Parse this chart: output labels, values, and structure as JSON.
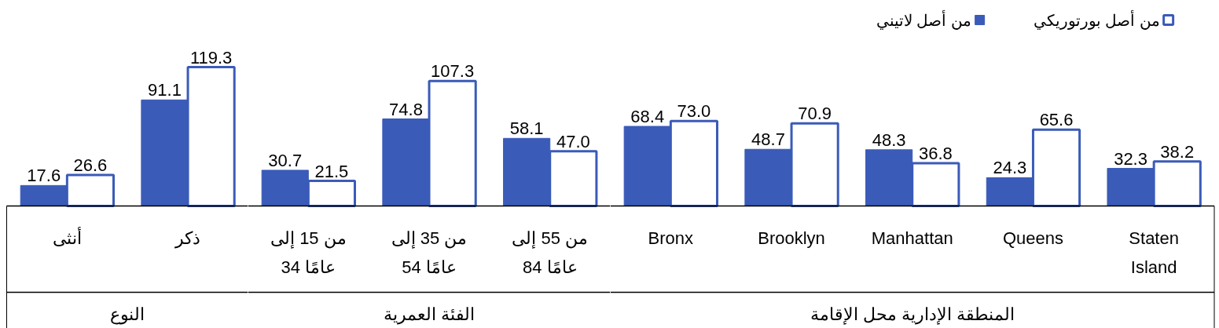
{
  "chart_data": [
    {
      "type": "bar",
      "xlabel": "النوع",
      "categories": [
        "أنثى",
        "ذكر"
      ],
      "series": [
        {
          "color": "#3a5bb8",
          "values": [
            17.6,
            91.1
          ],
          "value_labels": [
            "17.6",
            "91.1"
          ]
        },
        {
          "color": "#3a5bb8",
          "values": [
            26.6,
            119.3
          ],
          "value_labels": [
            "26.6",
            "119.3"
          ]
        }
      ]
    },
    {
      "type": "bar",
      "xlabel": "الفئة العمرية",
      "categories": [
        "من 15 إلى 34 عامًا",
        "من 35 إلى 54 عامًا",
        "من 55 إلى 84 عامًا"
      ],
      "series": [
        {
          "color": "#3a5bb8",
          "values": [
            30.7,
            74.8,
            58.1
          ],
          "value_labels": [
            "30.7",
            "74.8",
            "58.1"
          ]
        },
        {
          "color": "#3a5bb8",
          "values": [
            21.5,
            107.3,
            47.0
          ],
          "value_labels": [
            "21.5",
            "107.3",
            "47.0"
          ]
        }
      ]
    },
    {
      "type": "bar",
      "xlabel": "المنطقة الإدارية محل الإقامة",
      "categories": [
        "Bronx",
        "Brooklyn",
        "Manhattan",
        "Queens",
        "Staten Island"
      ],
      "series": [
        {
          "name": "من أصل لاتيني",
          "color": "#3a5bb8",
          "values": [
            68.4,
            48.7,
            48.3,
            24.3,
            32.3
          ],
          "value_labels": [
            "68.4",
            "48.7",
            "48.3",
            "24.3",
            "32.3"
          ]
        },
        {
          "name": "من أصل بورتوريكي",
          "color": "#3a5bb8",
          "values": [
            73.0,
            70.9,
            36.8,
            65.6,
            38.2
          ],
          "value_labels": [
            "73.0",
            "70.9",
            "36.8",
            "65.6",
            "38.2"
          ]
        }
      ],
      "legend": "top right"
    }
  ]
}
